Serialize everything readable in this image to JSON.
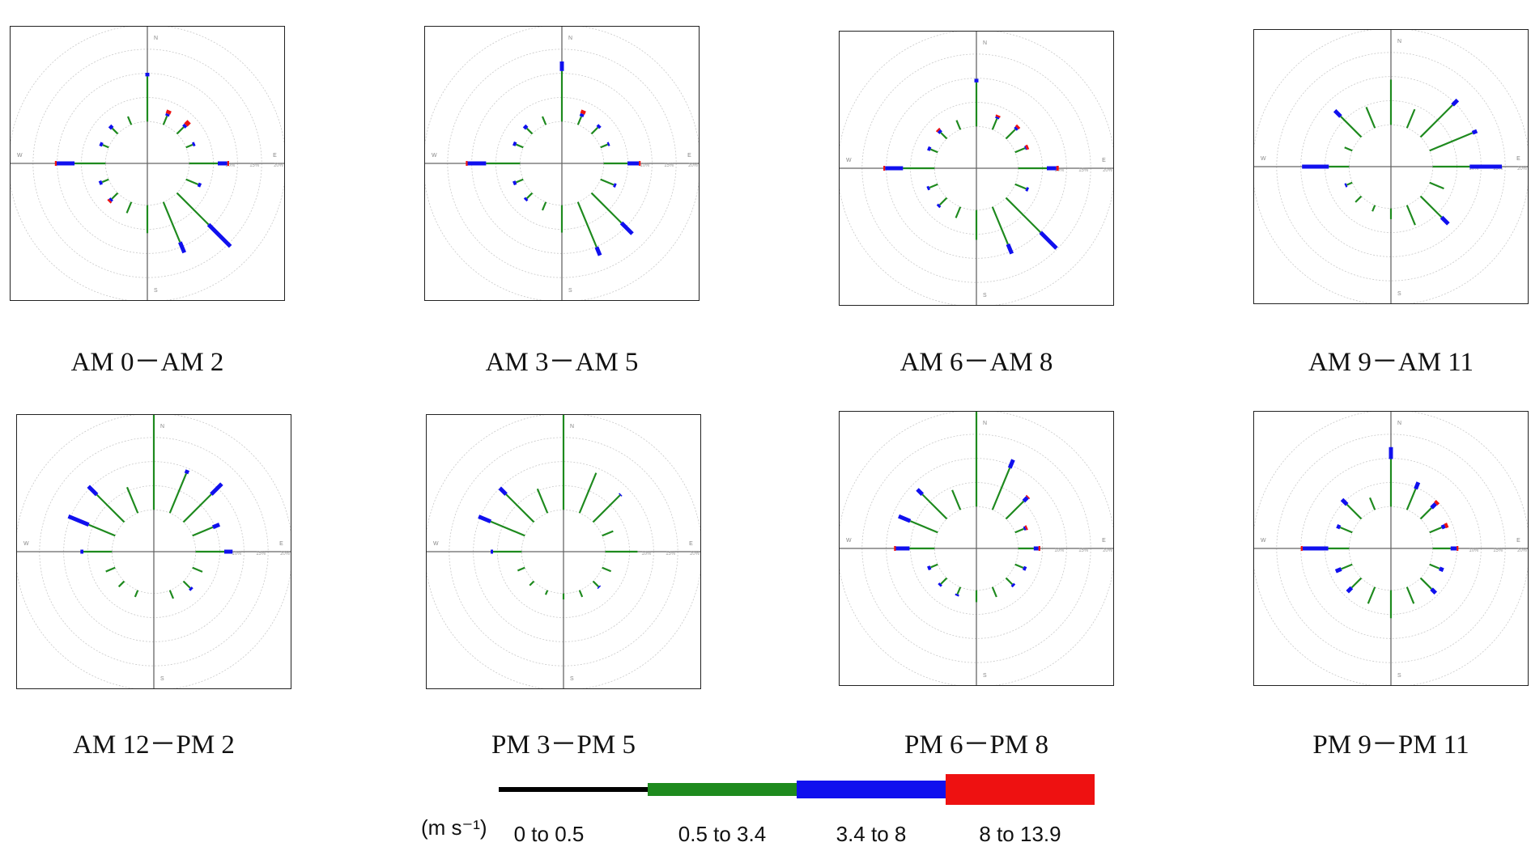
{
  "chart_data": {
    "type": "wind-rose",
    "unit": "(m s⁻¹)",
    "direction_labels": {
      "N": "N",
      "E": "E",
      "S": "S",
      "W": "W"
    },
    "ring_labels": [
      "10%",
      "15%",
      "20%"
    ],
    "speed_bins": [
      {
        "label": "0 to 0.5",
        "color": "#000000"
      },
      {
        "label": "0.5 to 3.4",
        "color": "#1e8a1e"
      },
      {
        "label": "3.4 to 8",
        "color": "#1010ee"
      },
      {
        "label": "8 to 13.9",
        "color": "#ee1111"
      }
    ],
    "directions": [
      "N",
      "NNE",
      "NE",
      "ENE",
      "E",
      "ESE",
      "SE",
      "SSE",
      "S",
      "SSW",
      "SW",
      "WSW",
      "W",
      "WNW",
      "NW",
      "NNW"
    ],
    "panels": [
      {
        "caption": "AM 0－AM 2",
        "series": [
          [
            0,
            7.6,
            0.6,
            0
          ],
          [
            0,
            1.6,
            0.4,
            0.6
          ],
          [
            0,
            1.6,
            0.5,
            0.8
          ],
          [
            0,
            1.2,
            0.4,
            0
          ],
          [
            0,
            4.8,
            1.6,
            0.3
          ],
          [
            0,
            2.2,
            0.5,
            0
          ],
          [
            0,
            7.5,
            5.2,
            0
          ],
          [
            0,
            7.3,
            1.9,
            0
          ],
          [
            0,
            4.7,
            0,
            0
          ],
          [
            0,
            2.0,
            0,
            0
          ],
          [
            0,
            1.4,
            0.4,
            0.3
          ],
          [
            0,
            1.2,
            0.5,
            0
          ],
          [
            0,
            5.2,
            3.0,
            0.3
          ],
          [
            0,
            1.1,
            0.5,
            0
          ],
          [
            0,
            1.3,
            0.6,
            0
          ],
          [
            0,
            1.5,
            0,
            0
          ]
        ]
      },
      {
        "caption": "AM 3－AM 5",
        "series": [
          [
            0,
            8.5,
            1.6,
            0
          ],
          [
            0,
            1.5,
            0.5,
            0.6
          ],
          [
            0,
            1.5,
            0.5,
            0
          ],
          [
            0,
            1.3,
            0.3,
            0
          ],
          [
            0,
            4.0,
            1.9,
            0.3
          ],
          [
            0,
            2.4,
            0.4,
            0
          ],
          [
            0,
            7.1,
            2.6,
            0
          ],
          [
            0,
            8.2,
            1.5,
            0
          ],
          [
            0,
            4.6,
            0,
            0
          ],
          [
            0,
            1.5,
            0,
            0
          ],
          [
            0,
            1.3,
            0.4,
            0
          ],
          [
            0,
            1.3,
            0.5,
            0
          ],
          [
            0,
            5.7,
            3.1,
            0.3
          ],
          [
            0,
            1.3,
            0.5,
            0
          ],
          [
            0,
            1.3,
            0.6,
            0
          ],
          [
            0,
            1.5,
            0,
            0
          ]
        ]
      },
      {
        "caption": "AM 6－AM 8",
        "series": [
          [
            0,
            7.4,
            0.6,
            0
          ],
          [
            0,
            2.0,
            0.3,
            0.3
          ],
          [
            0,
            2.2,
            0.4,
            0.4
          ],
          [
            0,
            1.8,
            0.2,
            0.4
          ],
          [
            0,
            4.8,
            1.6,
            0.4
          ],
          [
            0,
            2.0,
            0.4,
            0
          ],
          [
            0,
            8.2,
            3.8,
            0
          ],
          [
            0,
            6.8,
            1.7,
            0
          ],
          [
            0,
            5.0,
            0,
            0
          ],
          [
            0,
            2.0,
            0,
            0
          ],
          [
            0,
            1.7,
            0.4,
            0
          ],
          [
            0,
            1.5,
            0.4,
            0
          ],
          [
            0,
            5.3,
            3.0,
            0.3
          ],
          [
            0,
            1.3,
            0.5,
            0
          ],
          [
            0,
            1.4,
            0.5,
            0.3
          ],
          [
            0,
            1.7,
            0,
            0
          ]
        ]
      },
      {
        "caption": "AM 9－AM 11",
        "series": [
          [
            0,
            7.6,
            0,
            0
          ],
          [
            0,
            3.4,
            0,
            0
          ],
          [
            0,
            7.6,
            1.2,
            0
          ],
          [
            0,
            7.8,
            0.8,
            0
          ],
          [
            0,
            6.2,
            5.4,
            0
          ],
          [
            0,
            2.6,
            0,
            0
          ],
          [
            0,
            5.0,
            1.6,
            0
          ],
          [
            0,
            3.6,
            0,
            0
          ],
          [
            0,
            1.8,
            0,
            0
          ],
          [
            0,
            1.1,
            0,
            0
          ],
          [
            0,
            1.4,
            0,
            0
          ],
          [
            0,
            1.0,
            0.3,
            0
          ],
          [
            0,
            3.4,
            4.5,
            0
          ],
          [
            0,
            1.4,
            0,
            0
          ],
          [
            0,
            4.9,
            1.4,
            0
          ],
          [
            0,
            3.8,
            0,
            0
          ]
        ]
      },
      {
        "caption": "AM 12－PM 2",
        "series": [
          [
            0,
            16.0,
            0.4,
            0
          ],
          [
            0,
            7.2,
            0.6,
            0
          ],
          [
            0,
            6.6,
            2.5,
            0
          ],
          [
            0,
            3.7,
            1.2,
            0
          ],
          [
            0,
            4.8,
            1.4,
            0
          ],
          [
            0,
            1.8,
            0,
            0
          ],
          [
            0,
            1.6,
            0.4,
            0
          ],
          [
            0,
            1.5,
            0,
            0
          ],
          [
            0,
            0,
            0,
            0
          ],
          [
            0,
            1.2,
            0,
            0
          ],
          [
            0,
            1.3,
            0,
            0
          ],
          [
            0,
            1.7,
            0,
            0
          ],
          [
            0,
            4.8,
            0.5,
            0
          ],
          [
            0,
            4.8,
            3.7,
            0
          ],
          [
            0,
            6.5,
            2.0,
            0
          ],
          [
            0,
            4.7,
            0,
            0
          ]
        ]
      },
      {
        "caption": "PM 3－PM 5",
        "series": [
          [
            0,
            16.0,
            0,
            0
          ],
          [
            0,
            7.3,
            0,
            0
          ],
          [
            0,
            6.4,
            0.2,
            0
          ],
          [
            0,
            2.0,
            0,
            0
          ],
          [
            0,
            5.4,
            0,
            0
          ],
          [
            0,
            1.6,
            0,
            0
          ],
          [
            0,
            1.3,
            0.2,
            0
          ],
          [
            0,
            1.2,
            0,
            0
          ],
          [
            0,
            1.0,
            0,
            0
          ],
          [
            0,
            0.8,
            0,
            0
          ],
          [
            0,
            1.0,
            0,
            0
          ],
          [
            0,
            1.3,
            0,
            0
          ],
          [
            0,
            4.8,
            0.4,
            0
          ],
          [
            0,
            6.2,
            2.2,
            0
          ],
          [
            0,
            6.6,
            1.5,
            0
          ],
          [
            0,
            4.4,
            0,
            0
          ]
        ]
      },
      {
        "caption": "PM 6－PM 8",
        "series": [
          [
            0,
            16.0,
            0,
            0
          ],
          [
            0,
            7.6,
            1.5,
            0
          ],
          [
            0,
            4.2,
            0.9,
            0.2
          ],
          [
            0,
            1.6,
            0.3,
            0.3
          ],
          [
            0,
            2.6,
            0.8,
            0.3
          ],
          [
            0,
            1.5,
            0.5,
            0
          ],
          [
            0,
            1.5,
            0.4,
            0
          ],
          [
            0,
            1.8,
            0,
            0
          ],
          [
            0,
            2.0,
            0,
            0
          ],
          [
            0,
            1.3,
            0.3,
            0
          ],
          [
            0,
            1.4,
            0.4,
            0
          ],
          [
            0,
            1.3,
            0.5,
            0
          ],
          [
            0,
            4.2,
            2.3,
            0.3
          ],
          [
            0,
            5.0,
            2.1,
            0
          ],
          [
            0,
            5.8,
            1.2,
            0
          ],
          [
            0,
            3.6,
            0,
            0
          ]
        ]
      },
      {
        "caption": "PM 9－PM 11",
        "series": [
          [
            0,
            8.0,
            2.0,
            0
          ],
          [
            0,
            3.8,
            1.2,
            0
          ],
          [
            0,
            2.6,
            1.0,
            0.5
          ],
          [
            0,
            2.2,
            0.6,
            0.5
          ],
          [
            0,
            3.0,
            1.0,
            0.3
          ],
          [
            0,
            1.8,
            0.7,
            0
          ],
          [
            0,
            2.6,
            1.0,
            0
          ],
          [
            0,
            3.0,
            0,
            0
          ],
          [
            0,
            4.7,
            0,
            0
          ],
          [
            0,
            3.0,
            0,
            0
          ],
          [
            0,
            2.3,
            1.0,
            0
          ],
          [
            0,
            2.0,
            1.0,
            0
          ],
          [
            0,
            3.5,
            4.3,
            0.3
          ],
          [
            0,
            2.2,
            0.6,
            0
          ],
          [
            0,
            3.4,
            1.2,
            0
          ],
          [
            0,
            2.2,
            0,
            0
          ]
        ]
      }
    ]
  }
}
